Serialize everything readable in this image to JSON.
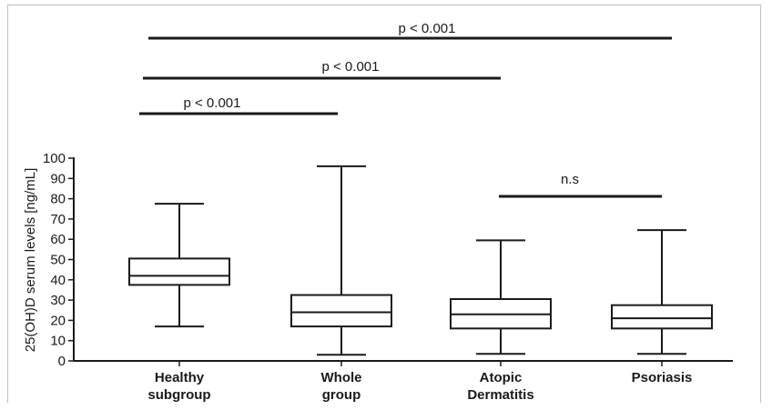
{
  "chart_data": {
    "type": "box",
    "ylabel": "25(OH)D serum levels [ng/mL]",
    "xlabel": "",
    "ylim": [
      0,
      100
    ],
    "yticks": [
      0,
      10,
      20,
      30,
      40,
      50,
      60,
      70,
      80,
      90,
      100
    ],
    "categories": [
      [
        "Healthy",
        "subgroup"
      ],
      [
        "Whole",
        "group"
      ],
      [
        "Atopic",
        "Dermatitis"
      ],
      [
        "Psoriasis"
      ]
    ],
    "boxes": [
      {
        "min": 17,
        "q1": 37.5,
        "median": 42,
        "q3": 50.5,
        "max": 77.5
      },
      {
        "min": 3,
        "q1": 17,
        "median": 24,
        "q3": 32.5,
        "max": 96
      },
      {
        "min": 3.5,
        "q1": 16,
        "median": 23,
        "q3": 30.5,
        "max": 59.5
      },
      {
        "min": 3.5,
        "q1": 16,
        "median": 21,
        "q3": 27.5,
        "max": 64.5
      }
    ],
    "grid": false,
    "annotations": [
      {
        "text": "p < 0.001",
        "from": 0,
        "to": 3,
        "level": 3
      },
      {
        "text": "p < 0.001",
        "from": 0,
        "to": 2,
        "level": 2
      },
      {
        "text": "p < 0.001",
        "from": 0,
        "to": 1,
        "level": 1
      },
      {
        "text": "n.s",
        "from": 2,
        "to": 3,
        "level": 0
      }
    ]
  }
}
